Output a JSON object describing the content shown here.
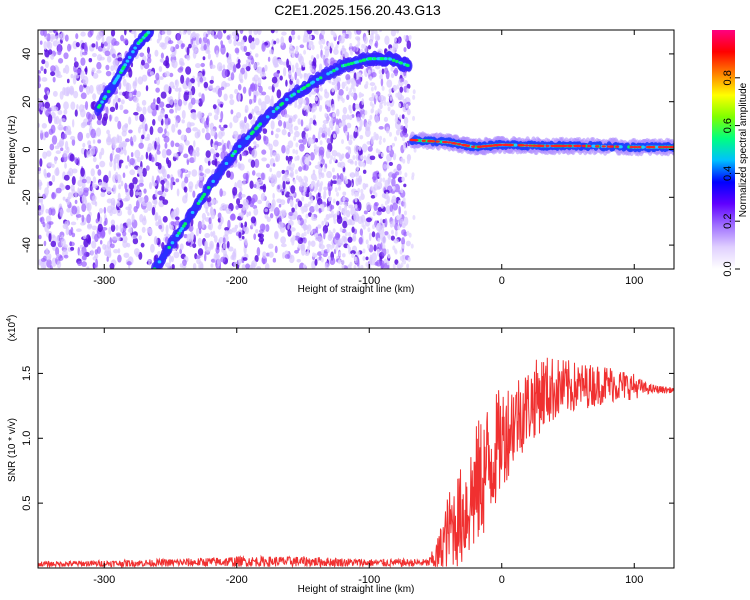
{
  "title": "C2E1.2025.156.20.43.G13",
  "chart_data": [
    {
      "type": "heatmap",
      "xlabel": "Height of straight line (km)",
      "ylabel": "Frequency (Hz)",
      "xlim": [
        -350,
        130
      ],
      "ylim": [
        -50,
        50
      ],
      "x_ticks": [
        -300,
        -200,
        -100,
        0,
        100
      ],
      "y_ticks": [
        -40,
        -20,
        0,
        20,
        40
      ],
      "colorbar": {
        "label": "Normalized spectral amplitude",
        "range": [
          0,
          1
        ],
        "ticks": [
          "0.0",
          "0.2",
          "0.4",
          "0.6",
          "0.8"
        ],
        "tick_values": [
          0,
          0.2,
          0.4,
          0.6,
          0.8
        ],
        "colors": [
          "#ffffff",
          "#e0d0ff",
          "#a070ff",
          "#6000ff",
          "#0000ff",
          "#00c0ff",
          "#00ff80",
          "#80ff00",
          "#ffff00",
          "#ff8000",
          "#ff0000",
          "#ff0080"
        ]
      },
      "ridges": [
        {
          "points": [
            [
              -305,
              17
            ],
            [
              -290,
              30
            ],
            [
              -275,
              44
            ],
            [
              -265,
              50
            ]
          ]
        },
        {
          "points": [
            [
              -262,
              -50
            ],
            [
              -240,
              -32
            ],
            [
              -220,
              -15
            ],
            [
              -200,
              0
            ],
            [
              -180,
              12
            ],
            [
              -160,
              22
            ],
            [
              -140,
              29
            ],
            [
              -120,
              35
            ],
            [
              -100,
              38
            ],
            [
              -85,
              38
            ],
            [
              -70,
              35
            ]
          ]
        },
        {
          "points": [
            [
              -68,
              4
            ],
            [
              -40,
              3
            ],
            [
              -20,
              1
            ],
            [
              0,
              2
            ],
            [
              30,
              1.5
            ],
            [
              60,
              1.5
            ],
            [
              100,
              1
            ],
            [
              130,
              1
            ]
          ]
        }
      ],
      "colors": {
        "plot_bg": "#ffffff",
        "noise": "#7a2ff0",
        "ridge_low": "#3a20ff",
        "ridge_mid": "#20d0ff",
        "ridge_high": "#ff2020",
        "line_core": "#00ff60"
      }
    },
    {
      "type": "line",
      "xlabel": "Height of straight line (km)",
      "ylabel": "SNR (10 * v/v)",
      "y_scale_label": "(x10",
      "y_scale_exp": "4",
      "xlim": [
        -350,
        130
      ],
      "ylim": [
        0,
        1.85
      ],
      "x_ticks": [
        -300,
        -200,
        -100,
        0,
        100
      ],
      "y_ticks": [
        0.5,
        1.0,
        1.5
      ],
      "y_tick_labels": [
        "0.5",
        "1.0",
        "1.5"
      ],
      "series": [
        {
          "color": "#f03030",
          "envelope": [
            {
              "x": -350,
              "base": 0.03,
              "amp": 0.02
            },
            {
              "x": -250,
              "base": 0.04,
              "amp": 0.03
            },
            {
              "x": -200,
              "base": 0.05,
              "amp": 0.04
            },
            {
              "x": -150,
              "base": 0.05,
              "amp": 0.04
            },
            {
              "x": -100,
              "base": 0.04,
              "amp": 0.03
            },
            {
              "x": -55,
              "base": 0.04,
              "amp": 0.03
            },
            {
              "x": -48,
              "base": 0.1,
              "amp": 0.15
            },
            {
              "x": -40,
              "base": 0.3,
              "amp": 0.3
            },
            {
              "x": -30,
              "base": 0.4,
              "amp": 0.4
            },
            {
              "x": -20,
              "base": 0.6,
              "amp": 0.5
            },
            {
              "x": -10,
              "base": 0.8,
              "amp": 0.5
            },
            {
              "x": 0,
              "base": 1.0,
              "amp": 0.4
            },
            {
              "x": 10,
              "base": 1.15,
              "amp": 0.35
            },
            {
              "x": 20,
              "base": 1.25,
              "amp": 0.3
            },
            {
              "x": 30,
              "base": 1.35,
              "amp": 0.3
            },
            {
              "x": 40,
              "base": 1.38,
              "amp": 0.25
            },
            {
              "x": 60,
              "base": 1.4,
              "amp": 0.18
            },
            {
              "x": 80,
              "base": 1.42,
              "amp": 0.15
            },
            {
              "x": 100,
              "base": 1.4,
              "amp": 0.1
            },
            {
              "x": 110,
              "base": 1.38,
              "amp": 0.04
            },
            {
              "x": 130,
              "base": 1.37,
              "amp": 0.02
            }
          ]
        }
      ]
    }
  ]
}
